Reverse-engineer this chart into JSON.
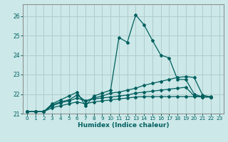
{
  "xlabel": "Humidex (Indice chaleur)",
  "bg_color": "#cce8e8",
  "grid_color": "#b0cccc",
  "line_color": "#005f5f",
  "spine_color": "#888888",
  "xlim": [
    -0.5,
    23.5
  ],
  "ylim": [
    21.0,
    26.6
  ],
  "yticks": [
    21,
    22,
    23,
    24,
    25,
    26
  ],
  "xticks": [
    0,
    1,
    2,
    3,
    4,
    5,
    6,
    7,
    8,
    9,
    10,
    11,
    12,
    13,
    14,
    15,
    16,
    17,
    18,
    19,
    20,
    21,
    22,
    23
  ],
  "series": [
    [
      21.1,
      21.1,
      21.1,
      21.5,
      21.7,
      21.9,
      22.1,
      21.4,
      21.9,
      22.05,
      22.2,
      24.9,
      24.65,
      26.05,
      25.55,
      24.75,
      24.0,
      23.85,
      22.75,
      22.75,
      22.0,
      21.85,
      21.85
    ],
    [
      21.1,
      21.1,
      21.1,
      21.45,
      21.6,
      21.7,
      21.95,
      21.65,
      21.8,
      21.9,
      22.05,
      22.1,
      22.2,
      22.3,
      22.45,
      22.55,
      22.65,
      22.75,
      22.85,
      22.9,
      22.85,
      21.95,
      21.85
    ],
    [
      21.1,
      21.1,
      21.1,
      21.4,
      21.55,
      21.65,
      21.8,
      21.65,
      21.75,
      21.8,
      21.85,
      21.9,
      21.95,
      22.05,
      22.1,
      22.15,
      22.2,
      22.25,
      22.3,
      22.35,
      21.9,
      21.85,
      21.85
    ],
    [
      21.1,
      21.1,
      21.1,
      21.3,
      21.4,
      21.5,
      21.6,
      21.5,
      21.6,
      21.65,
      21.7,
      21.75,
      21.8,
      21.85,
      21.87,
      21.87,
      21.87,
      21.87,
      21.87,
      21.87,
      21.87,
      21.87,
      21.87
    ]
  ]
}
